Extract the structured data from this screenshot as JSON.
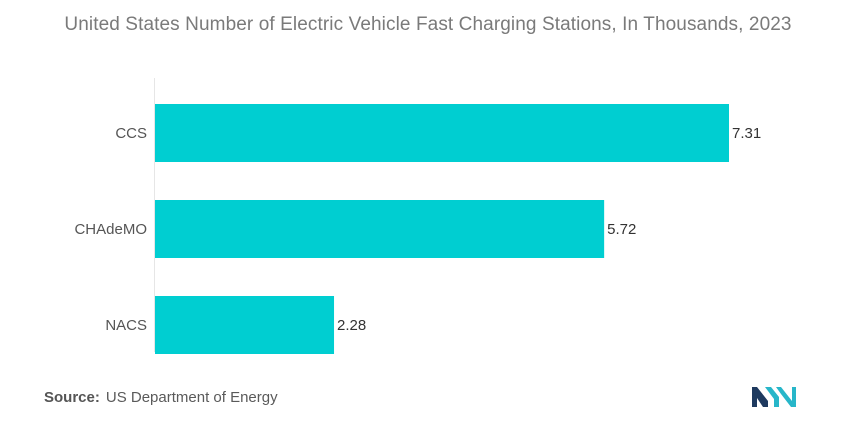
{
  "chart_data": {
    "type": "bar",
    "orientation": "horizontal",
    "title": "United States Number of Electric Vehicle Fast Charging Stations, In Thousands, 2023",
    "categories": [
      "CCS",
      "CHAdeMO",
      "NACS"
    ],
    "values": [
      7.31,
      5.72,
      2.28
    ],
    "value_labels": [
      "7.31",
      "5.72",
      "2.28"
    ],
    "xlabel": "",
    "ylabel": "",
    "xlim": [
      0,
      7.31
    ],
    "grid": false,
    "legend": "none",
    "bar_color": "#00ced1"
  },
  "source": {
    "label": "Source:",
    "text": "US Department of Energy"
  },
  "logo": {
    "icon": "mordor-intelligence-logo-icon",
    "colors": [
      "#1e3a5f",
      "#27b6c9"
    ]
  }
}
